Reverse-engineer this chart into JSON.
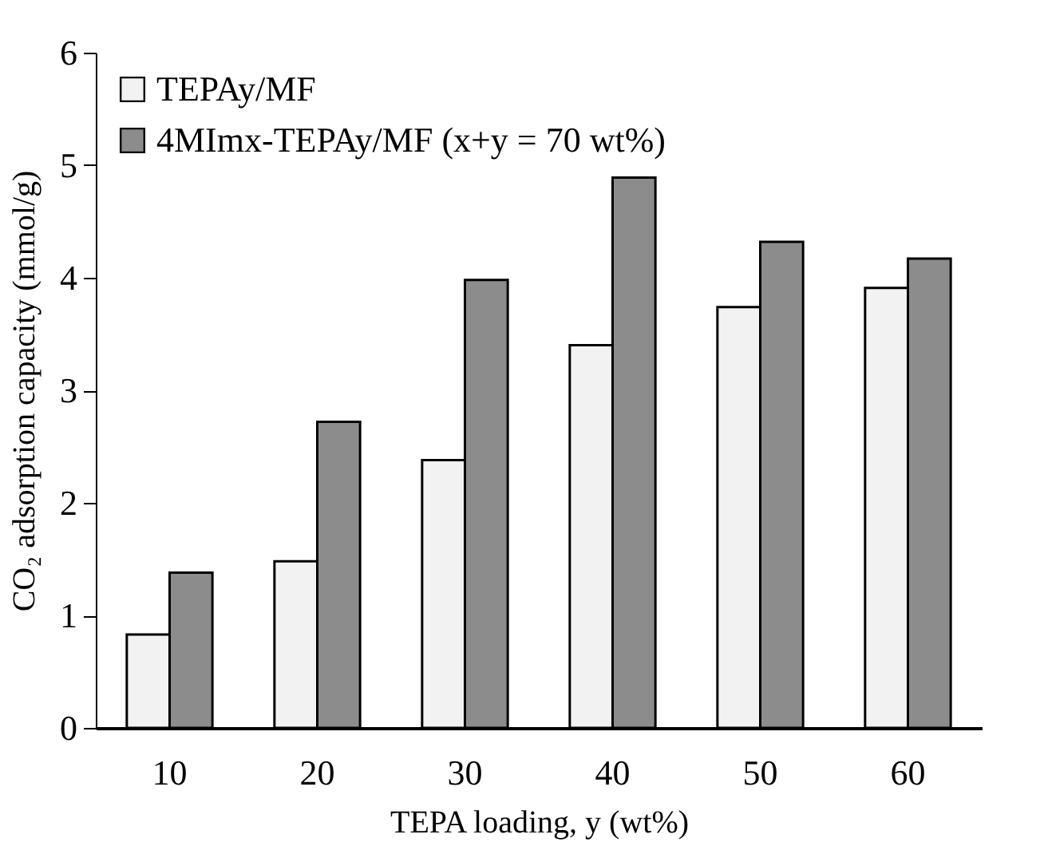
{
  "chart_data": {
    "type": "bar",
    "xlabel": "TEPA loading, y (wt%)",
    "ylabel": "CO₂ adsorption capacity (mmol/g)",
    "categories": [
      "10",
      "20",
      "30",
      "40",
      "50",
      "60"
    ],
    "series": [
      {
        "name": "TEPAy/MF",
        "color": "#f2f2f2",
        "values": [
          0.83,
          1.48,
          2.38,
          3.4,
          3.74,
          3.91
        ]
      },
      {
        "name": "4MImx-TEPAy/MF (x+y = 70 wt%)",
        "color": "#8c8c8c",
        "values": [
          1.38,
          2.72,
          3.98,
          4.89,
          4.32,
          4.17
        ]
      }
    ],
    "ylim": [
      0,
      6
    ],
    "yticks": [
      0,
      1,
      2,
      3,
      4,
      5,
      6
    ],
    "grid": false,
    "legend": "top left"
  }
}
